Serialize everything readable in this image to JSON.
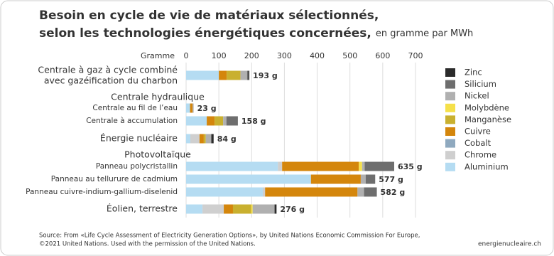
{
  "chart_data": {
    "type": "stacked-barh",
    "title": [
      "Besoin en cycle de vie de matériaux sélectionnés,",
      "selon les technologies énergétiques concernées,"
    ],
    "subtitle": "en gramme par MWh",
    "axis_label": "Gramme",
    "source": [
      "Source: From «Life Cycle Assessment of Electricity Generation Options», by United Nations Economic Commission For Europe,",
      "©2021 United Nations. Used with the permission of the United Nations."
    ],
    "website": "energienucleaire.ch",
    "xlim": [
      0,
      700
    ],
    "xticks": [
      0,
      100,
      200,
      300,
      400,
      500,
      600,
      700
    ],
    "grid": true,
    "categories": [
      "Centrale à gaz à cycle combiné\navec gazéification du charbon",
      "Centrale hydraulique",
      "Centrale au fil de l’eau",
      "Centrale à accumulation",
      "Énergie nucléaire",
      "Photovoltaïque",
      "Panneau polycristallin",
      "Panneau au tellurure de cadmium",
      "Panneau cuivre-indium-gallium-diselenid",
      "Éolien, terrestre"
    ],
    "series": [
      {
        "name": "Aluminium",
        "color": "#b5dcf2",
        "values": [
          100,
          null,
          12,
          63,
          13,
          null,
          280,
          381,
          234,
          50
        ]
      },
      {
        "name": "Chrome",
        "color": "#cfcfcf",
        "values": [
          0,
          null,
          0,
          0,
          28,
          null,
          13,
          0,
          7,
          65
        ]
      },
      {
        "name": "Cobalt",
        "color": "#8fa9bf",
        "values": [
          0,
          null,
          0,
          0,
          0,
          null,
          0,
          0,
          0,
          0
        ]
      },
      {
        "name": "Cuivre",
        "color": "#d4860c",
        "values": [
          24,
          null,
          8,
          24,
          13,
          null,
          234,
          152,
          282,
          28
        ]
      },
      {
        "name": "Manganèse",
        "color": "#c9b02f",
        "values": [
          42,
          null,
          0,
          26,
          6,
          null,
          0,
          0,
          0,
          56
        ]
      },
      {
        "name": "Molybdène",
        "color": "#f5e04a",
        "values": [
          0,
          null,
          0,
          0,
          0,
          null,
          10,
          0,
          0,
          4
        ]
      },
      {
        "name": "Nickel",
        "color": "#b0b0b0",
        "values": [
          20,
          null,
          3,
          10,
          17,
          null,
          8,
          15,
          20,
          67
        ]
      },
      {
        "name": "Silicium",
        "color": "#6e6e6e",
        "values": [
          4,
          null,
          0,
          35,
          0,
          null,
          90,
          29,
          39,
          0
        ]
      },
      {
        "name": "Zinc",
        "color": "#2b2b2b",
        "values": [
          3,
          null,
          0,
          0,
          7,
          null,
          0,
          0,
          0,
          6
        ]
      }
    ],
    "totals": [
      193,
      null,
      23,
      158,
      84,
      null,
      635,
      577,
      582,
      276
    ],
    "total_labels": [
      "193 g",
      null,
      "23 g",
      "158 g",
      "84 g",
      null,
      "635 g",
      "577 g",
      "582 g",
      "276 g"
    ]
  }
}
